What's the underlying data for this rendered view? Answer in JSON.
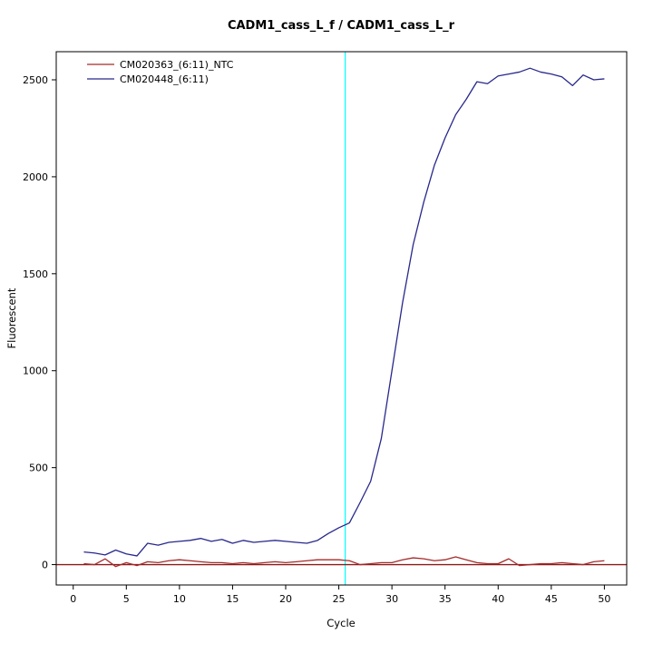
{
  "chart_data": {
    "type": "line",
    "title": "CADM1_cass_L_f / CADM1_cass_L_r",
    "xlabel": "Cycle",
    "ylabel": "Fluorescent",
    "xlim": [
      -1.6,
      52.1
    ],
    "ylim": [
      -105,
      2645
    ],
    "xticks": [
      0,
      5,
      10,
      15,
      20,
      25,
      30,
      35,
      40,
      45,
      50
    ],
    "yticks": [
      0,
      500,
      1000,
      1500,
      2000,
      2500
    ],
    "grid": false,
    "legend_position": "top-left",
    "x": [
      1,
      2,
      3,
      4,
      5,
      6,
      7,
      8,
      9,
      10,
      11,
      12,
      13,
      14,
      15,
      16,
      17,
      18,
      19,
      20,
      21,
      22,
      23,
      24,
      25,
      26,
      27,
      28,
      29,
      30,
      31,
      32,
      33,
      34,
      35,
      36,
      37,
      38,
      39,
      40,
      41,
      42,
      43,
      44,
      45,
      46,
      47,
      48,
      49,
      50
    ],
    "series": [
      {
        "name": "CM020363_(6:11)_NTC",
        "color": "#a52a2a",
        "values": [
          5,
          0,
          30,
          -10,
          10,
          -5,
          15,
          10,
          20,
          25,
          20,
          15,
          10,
          10,
          5,
          10,
          5,
          10,
          15,
          10,
          15,
          20,
          25,
          25,
          25,
          20,
          0,
          5,
          10,
          10,
          25,
          35,
          30,
          20,
          25,
          40,
          25,
          10,
          5,
          5,
          30,
          -5,
          0,
          5,
          5,
          10,
          5,
          0,
          15,
          20
        ]
      },
      {
        "name": "CM020448_(6:11)",
        "color": "#28288c",
        "values": [
          65,
          60,
          50,
          75,
          55,
          45,
          110,
          100,
          115,
          120,
          125,
          135,
          120,
          130,
          110,
          125,
          115,
          120,
          125,
          120,
          115,
          110,
          125,
          160,
          190,
          215,
          320,
          430,
          650,
          1000,
          1350,
          1650,
          1870,
          2060,
          2200,
          2320,
          2400,
          2490,
          2480,
          2520,
          2530,
          2540,
          2560,
          2540,
          2530,
          2515,
          2470,
          2525,
          2500,
          2505
        ]
      }
    ],
    "hline": {
      "y": 0,
      "color": "#8b1a1a"
    },
    "threshold": {
      "x": 25.6,
      "color": "#00ffff"
    }
  }
}
